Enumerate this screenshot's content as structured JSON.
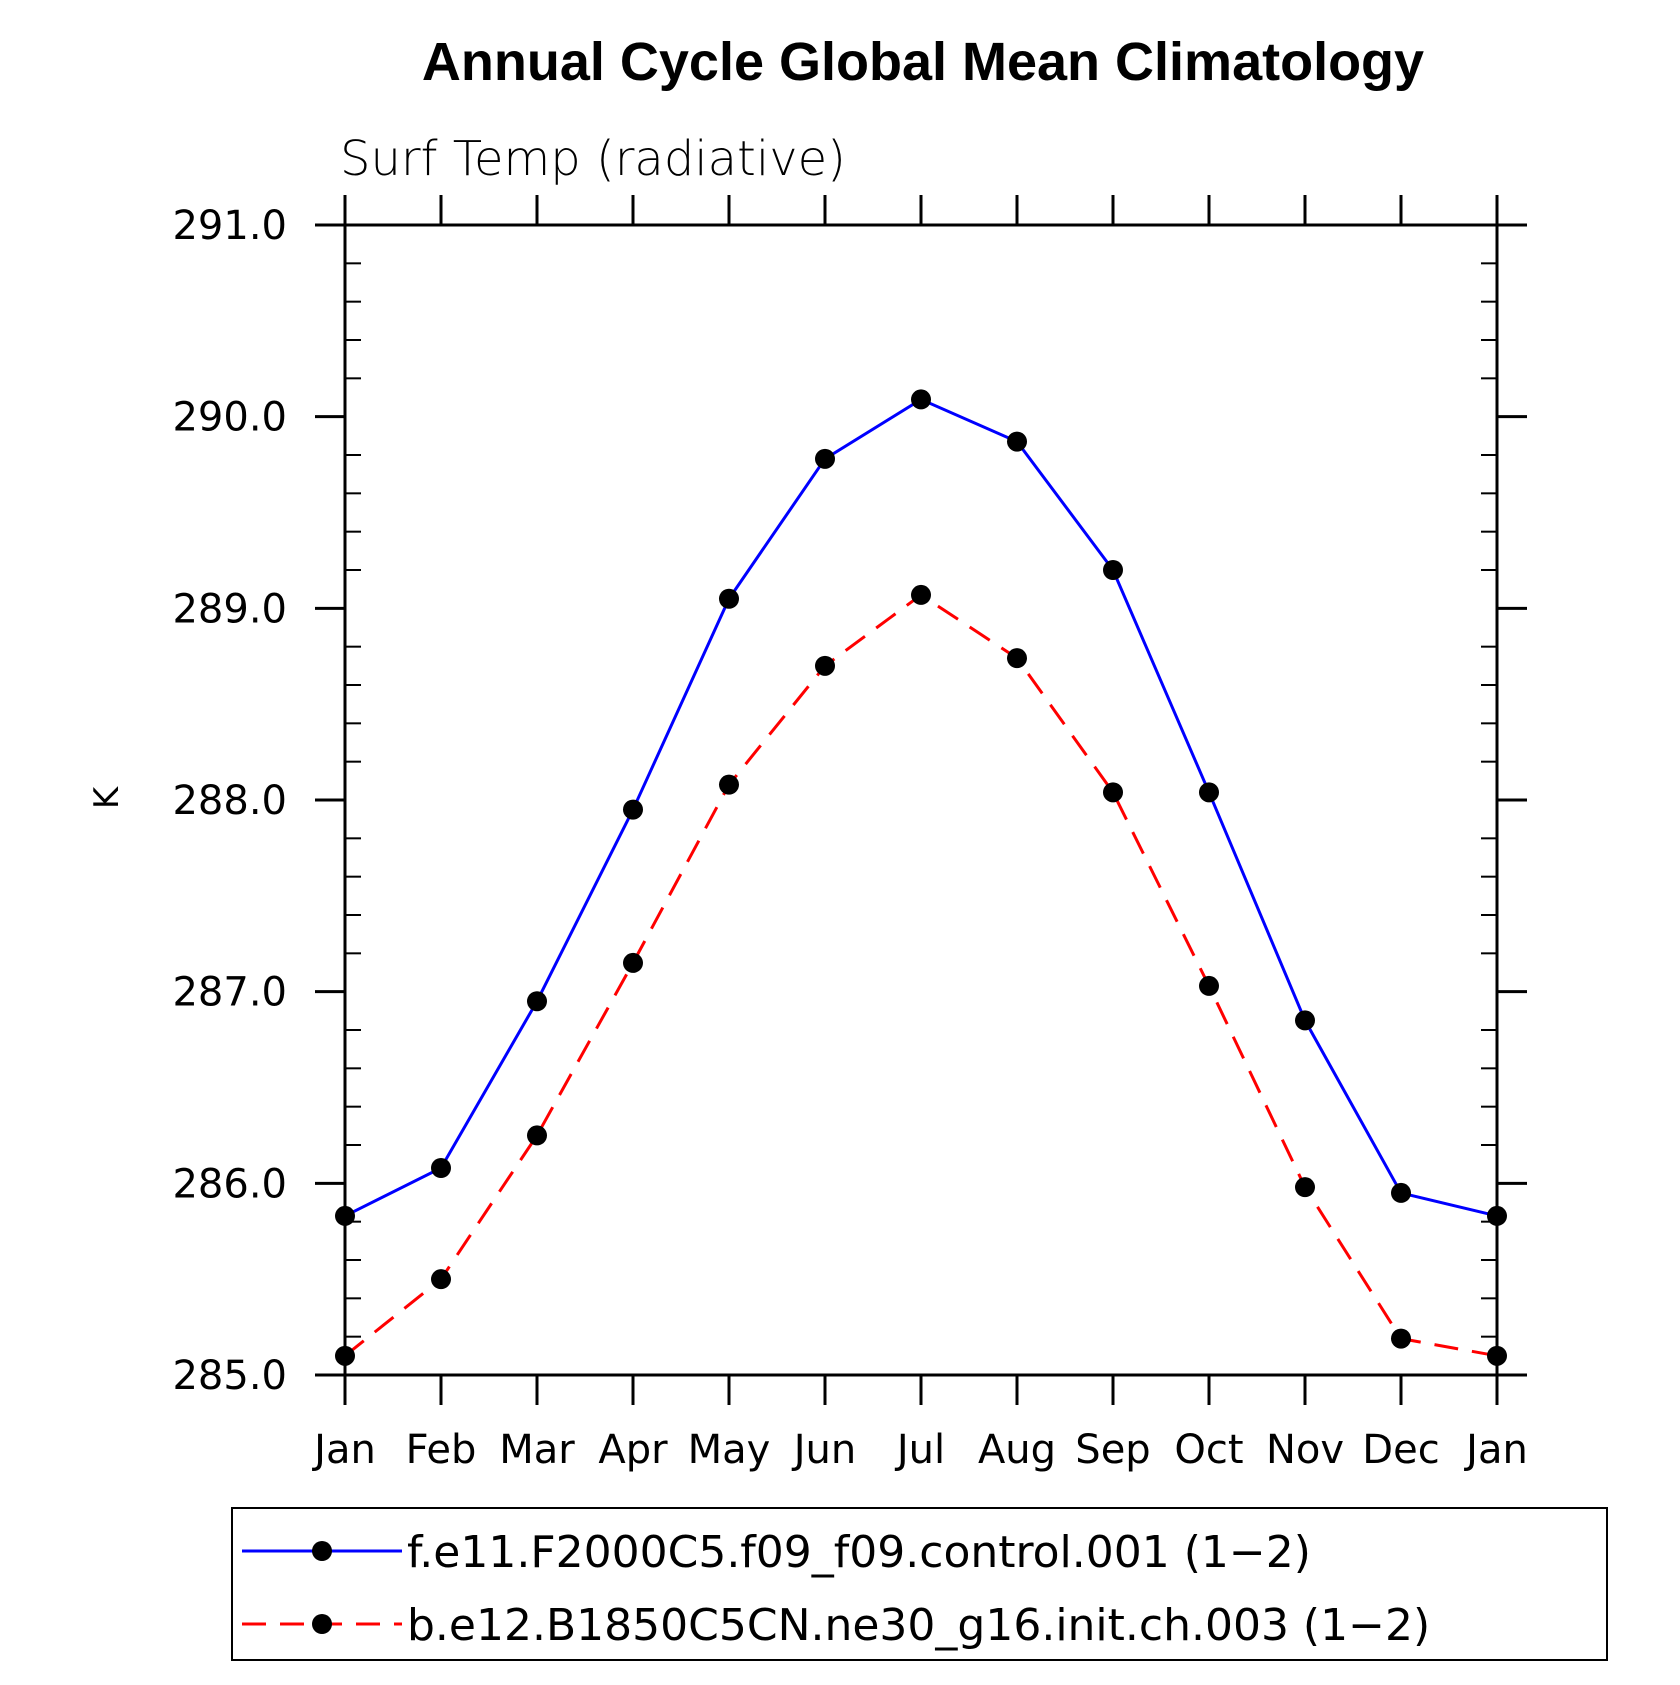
{
  "chart_data": {
    "type": "line",
    "title": "Annual Cycle Global Mean Climatology",
    "subtitle": "Surf Temp (radiative)",
    "xlabel": "",
    "ylabel": "K",
    "categories": [
      "Jan",
      "Feb",
      "Mar",
      "Apr",
      "May",
      "Jun",
      "Jul",
      "Aug",
      "Sep",
      "Oct",
      "Nov",
      "Dec",
      "Jan"
    ],
    "ylim": [
      285.0,
      291.0
    ],
    "yticks": [
      "285.0",
      "286.0",
      "287.0",
      "288.0",
      "289.0",
      "290.0",
      "291.0"
    ],
    "grid": false,
    "legend_position": "bottom",
    "series": [
      {
        "name": "f.e11.F2000C5.f09_f09.control.001 (1−2)",
        "color": "#0000ff",
        "line_style": "solid",
        "marker": "filled-circle",
        "values": [
          285.83,
          286.08,
          286.95,
          287.95,
          289.05,
          289.78,
          290.09,
          289.87,
          289.2,
          288.04,
          286.85,
          285.95,
          285.83
        ]
      },
      {
        "name": "b.e12.B1850C5CN.ne30_g16.init.ch.003 (1−2)",
        "color": "#ff0000",
        "line_style": "dashed",
        "marker": "filled-circle",
        "values": [
          285.1,
          285.5,
          286.25,
          287.15,
          288.08,
          288.7,
          289.07,
          288.74,
          288.04,
          287.03,
          285.98,
          285.19,
          285.1
        ]
      }
    ]
  }
}
